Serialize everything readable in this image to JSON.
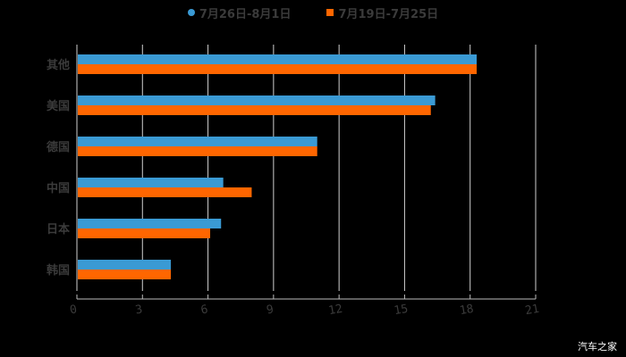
{
  "chart_data": {
    "type": "bar",
    "orientation": "horizontal",
    "title": "",
    "categories": [
      "其他",
      "美国",
      "德国",
      "中国",
      "日本",
      "韩国"
    ],
    "series": [
      {
        "name": "7月26日-8月1日",
        "color": "#3a9ad4",
        "values": [
          18.3,
          16.4,
          11.0,
          6.7,
          6.6,
          4.3
        ]
      },
      {
        "name": "7月19日-7月25日",
        "color": "#ff6600",
        "values": [
          18.3,
          16.2,
          11.0,
          8.0,
          6.1,
          4.3
        ]
      }
    ],
    "xlabel": "",
    "ylabel": "",
    "xlim": [
      0,
      21
    ],
    "xticks": [
      0,
      3,
      6,
      9,
      12,
      15,
      18,
      21
    ],
    "grid": true,
    "legend_position": "top"
  },
  "legend": {
    "items": [
      {
        "label": "7月26日-8月1日",
        "color": "#3a9ad4",
        "shape": "circle"
      },
      {
        "label": "7月19日-7月25日",
        "color": "#ff6600",
        "shape": "square"
      }
    ]
  },
  "watermark": "汽车之家"
}
